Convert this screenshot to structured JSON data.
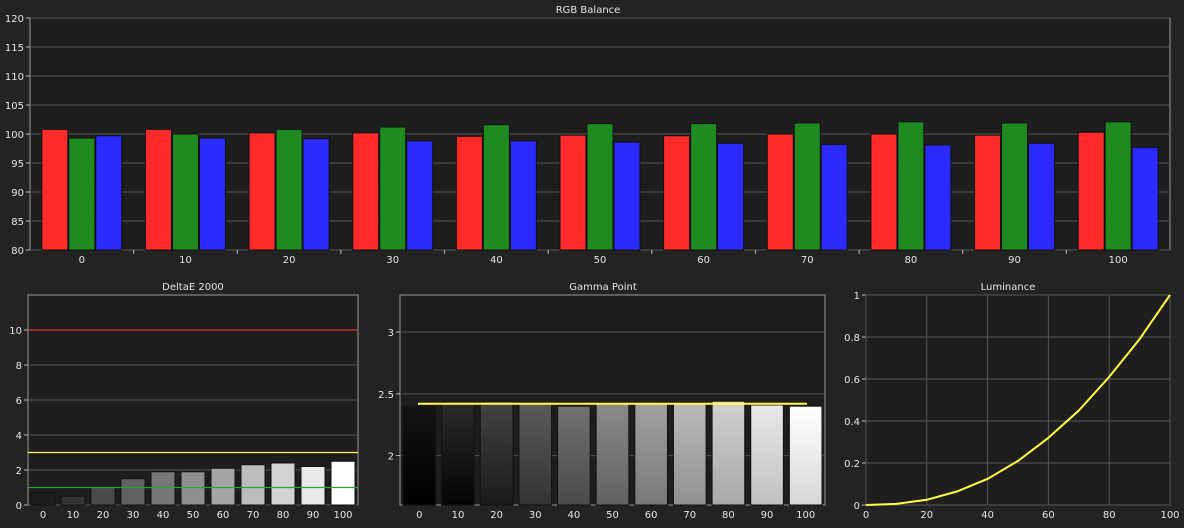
{
  "colors": {
    "background": "#232323",
    "plot_bg": "#1e1e1e",
    "grid": "#555555",
    "red": "#ff2b2b",
    "green": "#1f8a1f",
    "blue": "#2b2bff",
    "yellow": "#ffff44",
    "limit_red": "#e03030",
    "limit_green": "#33a033"
  },
  "chart_data": [
    {
      "type": "bar",
      "title": "RGB Balance",
      "categories": [
        "0",
        "10",
        "20",
        "30",
        "40",
        "50",
        "60",
        "70",
        "80",
        "90",
        "100"
      ],
      "series": [
        {
          "color": "red",
          "values": [
            100.8,
            100.8,
            100.2,
            100.2,
            99.6,
            99.8,
            99.7,
            100.0,
            100.0,
            99.8,
            100.3
          ]
        },
        {
          "color": "green",
          "values": [
            99.3,
            100.0,
            100.8,
            101.2,
            101.6,
            101.8,
            101.8,
            101.9,
            102.1,
            101.9,
            102.1
          ]
        },
        {
          "color": "blue",
          "values": [
            99.7,
            99.3,
            99.2,
            98.8,
            98.8,
            98.6,
            98.4,
            98.2,
            98.1,
            98.4,
            97.7
          ]
        }
      ],
      "ylim": [
        80,
        120
      ],
      "yticks": [
        80,
        85,
        90,
        95,
        100,
        105,
        110,
        115,
        120
      ],
      "grid": true
    },
    {
      "type": "bar",
      "title": "DeltaE 2000",
      "categories": [
        "0",
        "10",
        "20",
        "30",
        "40",
        "50",
        "60",
        "70",
        "80",
        "90",
        "100"
      ],
      "values": [
        0.7,
        0.5,
        1.0,
        1.5,
        1.9,
        1.9,
        2.1,
        2.3,
        2.4,
        2.2,
        2.5
      ],
      "reference_lines": [
        10,
        3,
        1
      ],
      "ylim": [
        0,
        12
      ],
      "yticks": [
        0,
        2,
        4,
        6,
        8,
        10
      ],
      "grid": true
    },
    {
      "type": "bar",
      "title": "Gamma Point",
      "categories": [
        "0",
        "10",
        "20",
        "30",
        "40",
        "50",
        "60",
        "70",
        "80",
        "90",
        "100"
      ],
      "values": [
        2.4,
        2.44,
        2.44,
        2.42,
        2.4,
        2.42,
        2.42,
        2.42,
        2.44,
        2.41,
        2.4
      ],
      "reference_lines": [
        2.42
      ],
      "ylim": [
        1.6,
        3.3
      ],
      "yticks": [
        2,
        2.5,
        3
      ],
      "grid": true
    },
    {
      "type": "line",
      "title": "Luminance",
      "x": [
        0,
        10,
        20,
        30,
        40,
        50,
        60,
        70,
        80,
        90,
        100
      ],
      "y": [
        0,
        0.005,
        0.025,
        0.065,
        0.125,
        0.21,
        0.32,
        0.45,
        0.61,
        0.79,
        1.0
      ],
      "xlim": [
        0,
        100
      ],
      "ylim": [
        0,
        1
      ],
      "xticks": [
        0,
        20,
        40,
        60,
        80,
        100
      ],
      "yticks": [
        0,
        0.2,
        0.4,
        0.6,
        0.8,
        1
      ],
      "grid": true
    }
  ]
}
